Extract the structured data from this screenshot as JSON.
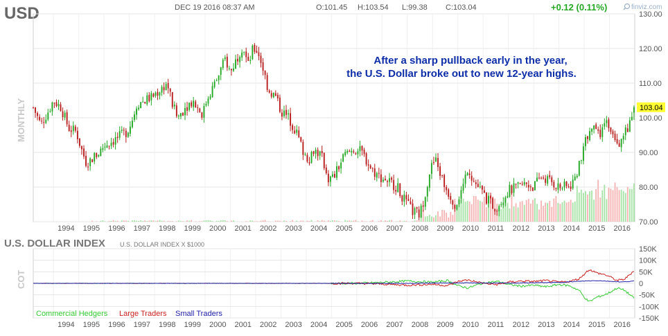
{
  "header": {
    "symbol": "USD",
    "date": "DEC 19 2016 08:37 AM",
    "open": "O:101.45",
    "high": "H:103.54",
    "low": "L:99.38",
    "close": "C:103.04",
    "change": "+0.12 (0.11%)",
    "brand": "finviz.com"
  },
  "price_panel": {
    "side_label": "MONTHLY",
    "last_price": "103.04",
    "annotation_line1": "After a sharp pullback early in the year,",
    "annotation_line2": "the U.S. Dollar broke out to new 12-year highs."
  },
  "cot_panel": {
    "title": "U.S. DOLLAR INDEX",
    "subtitle": "U.S. DOLLAR INDEX X $1000",
    "side_label": "COT"
  },
  "colors": {
    "up": "#22a822",
    "down": "#b81c1c",
    "vol_up": "#a8e3a8",
    "vol_down": "#f5b5b5",
    "commercial": "#33cc33",
    "large": "#cc2222",
    "small": "#2222aa",
    "axis_text": "#555555",
    "grid": "#e4e4e4",
    "annotation": "#0d2ea8",
    "last_price_bg": "#ffff33"
  },
  "chart_data": [
    {
      "type": "candlestick",
      "title": "USD",
      "timeframe": "MONTHLY",
      "x_ticks": [
        "1994",
        "1995",
        "1996",
        "1997",
        "1998",
        "1999",
        "2000",
        "2001",
        "2002",
        "2003",
        "2004",
        "2005",
        "2006",
        "2007",
        "2008",
        "2009",
        "2010",
        "2011",
        "2012",
        "2013",
        "2014",
        "2015",
        "2016"
      ],
      "y_ticks": [
        "70.00",
        "80.00",
        "90.00",
        "100.00",
        "110.00",
        "120.00",
        "130.00"
      ],
      "ylim": [
        70,
        130
      ],
      "xlim": [
        1993.2,
        2017.0
      ],
      "close_anchors": [
        {
          "t": 1993.2,
          "v": 103
        },
        {
          "t": 1993.5,
          "v": 98
        },
        {
          "t": 1993.8,
          "v": 102
        },
        {
          "t": 1994.0,
          "v": 105
        },
        {
          "t": 1994.3,
          "v": 103
        },
        {
          "t": 1994.6,
          "v": 97
        },
        {
          "t": 1994.9,
          "v": 96
        },
        {
          "t": 1995.1,
          "v": 91
        },
        {
          "t": 1995.3,
          "v": 87
        },
        {
          "t": 1995.5,
          "v": 88
        },
        {
          "t": 1995.8,
          "v": 90
        },
        {
          "t": 1996.0,
          "v": 92
        },
        {
          "t": 1996.5,
          "v": 94
        },
        {
          "t": 1996.9,
          "v": 96
        },
        {
          "t": 1997.1,
          "v": 99
        },
        {
          "t": 1997.3,
          "v": 104
        },
        {
          "t": 1997.6,
          "v": 105
        },
        {
          "t": 1997.9,
          "v": 106
        },
        {
          "t": 1998.2,
          "v": 108
        },
        {
          "t": 1998.5,
          "v": 110
        },
        {
          "t": 1998.7,
          "v": 104
        },
        {
          "t": 1998.9,
          "v": 100
        },
        {
          "t": 1999.2,
          "v": 103
        },
        {
          "t": 1999.5,
          "v": 105
        },
        {
          "t": 1999.9,
          "v": 101
        },
        {
          "t": 2000.1,
          "v": 106
        },
        {
          "t": 2000.4,
          "v": 110
        },
        {
          "t": 2000.8,
          "v": 117
        },
        {
          "t": 2001.0,
          "v": 113
        },
        {
          "t": 2001.3,
          "v": 118
        },
        {
          "t": 2001.5,
          "v": 121
        },
        {
          "t": 2001.7,
          "v": 115
        },
        {
          "t": 2001.9,
          "v": 120
        },
        {
          "t": 2002.1,
          "v": 119
        },
        {
          "t": 2002.3,
          "v": 114
        },
        {
          "t": 2002.5,
          "v": 108
        },
        {
          "t": 2002.8,
          "v": 106
        },
        {
          "t": 2003.0,
          "v": 102
        },
        {
          "t": 2003.3,
          "v": 100
        },
        {
          "t": 2003.6,
          "v": 96
        },
        {
          "t": 2003.9,
          "v": 90
        },
        {
          "t": 2004.1,
          "v": 88
        },
        {
          "t": 2004.3,
          "v": 91
        },
        {
          "t": 2004.6,
          "v": 89
        },
        {
          "t": 2004.9,
          "v": 82
        },
        {
          "t": 2005.1,
          "v": 83
        },
        {
          "t": 2005.5,
          "v": 89
        },
        {
          "t": 2005.9,
          "v": 91
        },
        {
          "t": 2006.2,
          "v": 90
        },
        {
          "t": 2006.6,
          "v": 85
        },
        {
          "t": 2006.9,
          "v": 83
        },
        {
          "t": 2007.2,
          "v": 82
        },
        {
          "t": 2007.6,
          "v": 80
        },
        {
          "t": 2007.9,
          "v": 76
        },
        {
          "t": 2008.2,
          "v": 73
        },
        {
          "t": 2008.5,
          "v": 72
        },
        {
          "t": 2008.7,
          "v": 78
        },
        {
          "t": 2008.9,
          "v": 85
        },
        {
          "t": 2009.1,
          "v": 88
        },
        {
          "t": 2009.2,
          "v": 86
        },
        {
          "t": 2009.5,
          "v": 80
        },
        {
          "t": 2009.9,
          "v": 75
        },
        {
          "t": 2010.2,
          "v": 80
        },
        {
          "t": 2010.4,
          "v": 86
        },
        {
          "t": 2010.6,
          "v": 82
        },
        {
          "t": 2010.9,
          "v": 79
        },
        {
          "t": 2011.2,
          "v": 76
        },
        {
          "t": 2011.5,
          "v": 74
        },
        {
          "t": 2011.8,
          "v": 77
        },
        {
          "t": 2012.0,
          "v": 79
        },
        {
          "t": 2012.4,
          "v": 80
        },
        {
          "t": 2012.7,
          "v": 81
        },
        {
          "t": 2013.0,
          "v": 80
        },
        {
          "t": 2013.3,
          "v": 83
        },
        {
          "t": 2013.6,
          "v": 82
        },
        {
          "t": 2014.0,
          "v": 80
        },
        {
          "t": 2014.4,
          "v": 80
        },
        {
          "t": 2014.6,
          "v": 82
        },
        {
          "t": 2014.9,
          "v": 88
        },
        {
          "t": 2015.1,
          "v": 95
        },
        {
          "t": 2015.3,
          "v": 97
        },
        {
          "t": 2015.6,
          "v": 95
        },
        {
          "t": 2015.9,
          "v": 99
        },
        {
          "t": 2016.2,
          "v": 95
        },
        {
          "t": 2016.4,
          "v": 93
        },
        {
          "t": 2016.6,
          "v": 96
        },
        {
          "t": 2016.8,
          "v": 98
        },
        {
          "t": 2016.97,
          "v": 103.04
        }
      ],
      "last_bar": {
        "open": 101.45,
        "high": 103.54,
        "low": 99.38,
        "close": 103.04
      }
    },
    {
      "type": "line",
      "title": "U.S. DOLLAR INDEX",
      "x_ticks": [
        "1994",
        "1995",
        "1996",
        "1997",
        "1998",
        "1999",
        "2000",
        "2001",
        "2002",
        "2003",
        "2004",
        "2005",
        "2006",
        "2007",
        "2008",
        "2009",
        "2010",
        "2011",
        "2012",
        "2013",
        "2014",
        "2015",
        "2016"
      ],
      "y_ticks": [
        "150K",
        "100K",
        "50K",
        "0",
        "-50K",
        "-100K",
        "-150K"
      ],
      "ylim": [
        -150000,
        150000
      ],
      "legend": "bottom-left",
      "series": [
        {
          "name": "Commercial Hedgers",
          "color_key": "commercial",
          "points": [
            [
              1993.2,
              0
            ],
            [
              2006.0,
              0
            ],
            [
              2007.0,
              4000
            ],
            [
              2008.0,
              10000
            ],
            [
              2009.0,
              5000
            ],
            [
              2009.6,
              12000
            ],
            [
              2010.0,
              -10000
            ],
            [
              2010.4,
              -20000
            ],
            [
              2010.8,
              -5000
            ],
            [
              2011.2,
              5000
            ],
            [
              2011.6,
              8000
            ],
            [
              2012.0,
              -5000
            ],
            [
              2012.5,
              -12000
            ],
            [
              2013.0,
              -8000
            ],
            [
              2013.5,
              -15000
            ],
            [
              2014.0,
              -5000
            ],
            [
              2014.4,
              -10000
            ],
            [
              2014.8,
              -30000
            ],
            [
              2015.0,
              -60000
            ],
            [
              2015.2,
              -80000
            ],
            [
              2015.5,
              -60000
            ],
            [
              2015.8,
              -50000
            ],
            [
              2016.0,
              -40000
            ],
            [
              2016.3,
              -20000
            ],
            [
              2016.6,
              -30000
            ],
            [
              2016.97,
              -65000
            ]
          ]
        },
        {
          "name": "Large Traders",
          "color_key": "large",
          "points": [
            [
              1993.2,
              0
            ],
            [
              2006.0,
              0
            ],
            [
              2007.0,
              -3000
            ],
            [
              2008.0,
              -8000
            ],
            [
              2009.0,
              -4000
            ],
            [
              2009.6,
              -10000
            ],
            [
              2010.0,
              8000
            ],
            [
              2010.4,
              15000
            ],
            [
              2010.8,
              5000
            ],
            [
              2011.2,
              -3000
            ],
            [
              2011.6,
              -5000
            ],
            [
              2012.0,
              5000
            ],
            [
              2012.5,
              10000
            ],
            [
              2013.0,
              8000
            ],
            [
              2013.5,
              12000
            ],
            [
              2014.0,
              5000
            ],
            [
              2014.4,
              8000
            ],
            [
              2014.8,
              20000
            ],
            [
              2015.0,
              40000
            ],
            [
              2015.2,
              60000
            ],
            [
              2015.5,
              45000
            ],
            [
              2015.8,
              38000
            ],
            [
              2016.0,
              30000
            ],
            [
              2016.3,
              12000
            ],
            [
              2016.6,
              18000
            ],
            [
              2016.97,
              55000
            ]
          ]
        },
        {
          "name": "Small Traders",
          "color_key": "small",
          "points": [
            [
              1993.2,
              0
            ],
            [
              2008.0,
              0
            ],
            [
              2010.0,
              2000
            ],
            [
              2012.0,
              1000
            ],
            [
              2014.0,
              4000
            ],
            [
              2015.0,
              10000
            ],
            [
              2015.5,
              12000
            ],
            [
              2016.0,
              9000
            ],
            [
              2016.5,
              6000
            ],
            [
              2016.97,
              10000
            ]
          ]
        }
      ]
    }
  ]
}
